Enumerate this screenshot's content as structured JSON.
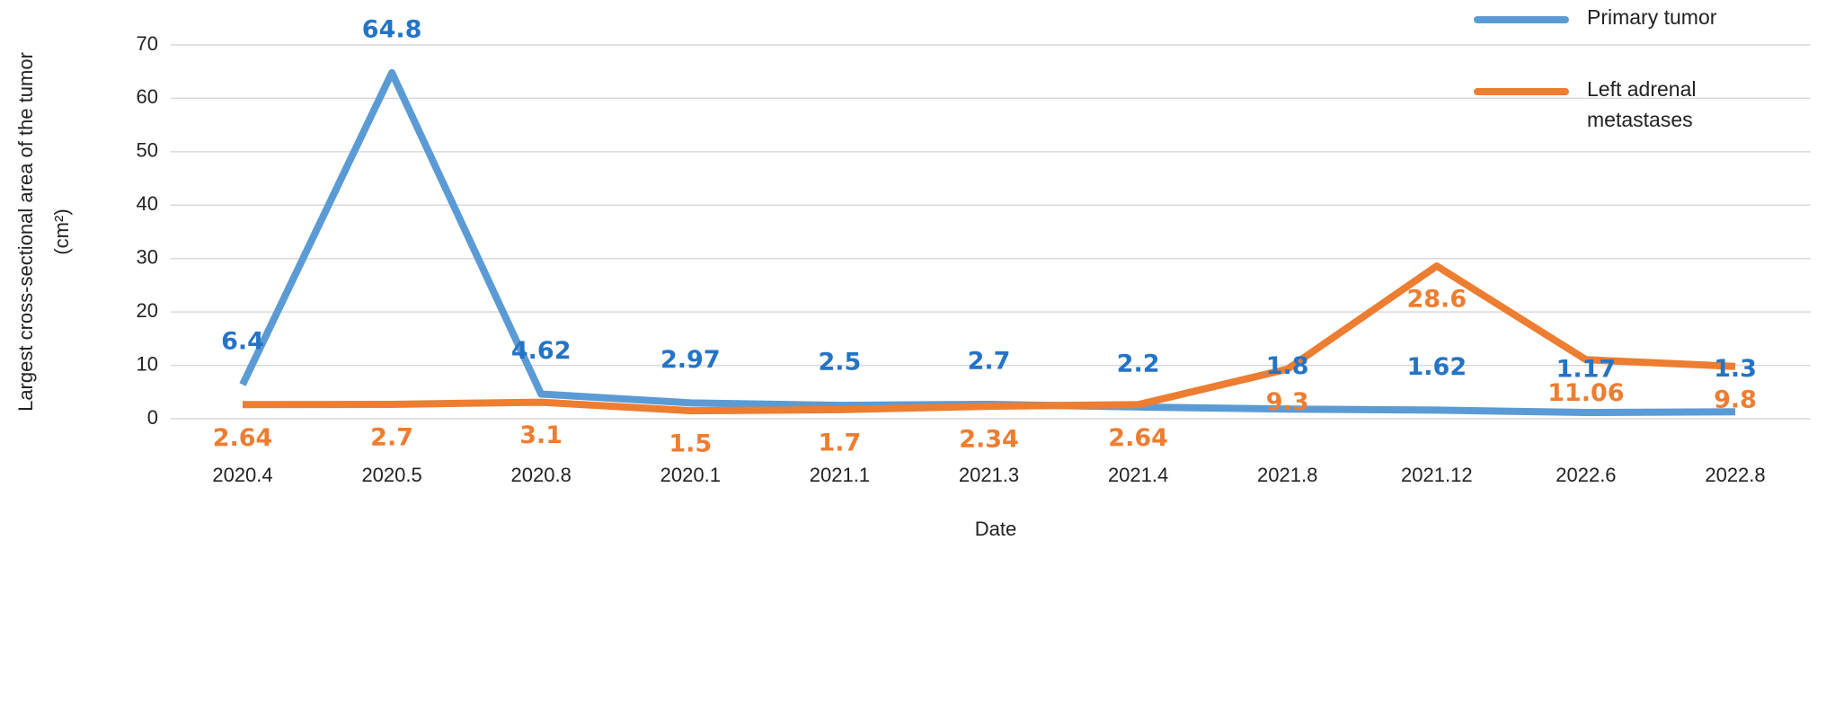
{
  "chart_data": {
    "type": "line",
    "x_label": "Date",
    "y_label": [
      "Largest cross-sectional area of the tumor",
      "(cm²)"
    ],
    "categories": [
      "2020.4",
      "2020.5",
      "2020.8",
      "2020.1",
      "2021.1",
      "2021.3",
      "2021.4",
      "2021.8",
      "2021.12",
      "2022.6",
      "2022.8"
    ],
    "series": [
      {
        "name": "Primary tumor",
        "color": "#5b9bd5",
        "values": [
          6.4,
          64.8,
          4.62,
          2.97,
          2.5,
          2.7,
          2.2,
          1.8,
          1.62,
          1.17,
          1.3
        ]
      },
      {
        "name": "Left adrenal metastases",
        "color": "#ed7d31",
        "values": [
          2.64,
          2.7,
          3.1,
          1.5,
          1.7,
          2.34,
          2.64,
          9.3,
          28.6,
          11.06,
          9.8
        ]
      }
    ],
    "ylim": [
      0,
      70
    ],
    "yticks": [
      0,
      10,
      20,
      30,
      40,
      50,
      60,
      70
    ],
    "grid": true,
    "legend": "top-right"
  }
}
